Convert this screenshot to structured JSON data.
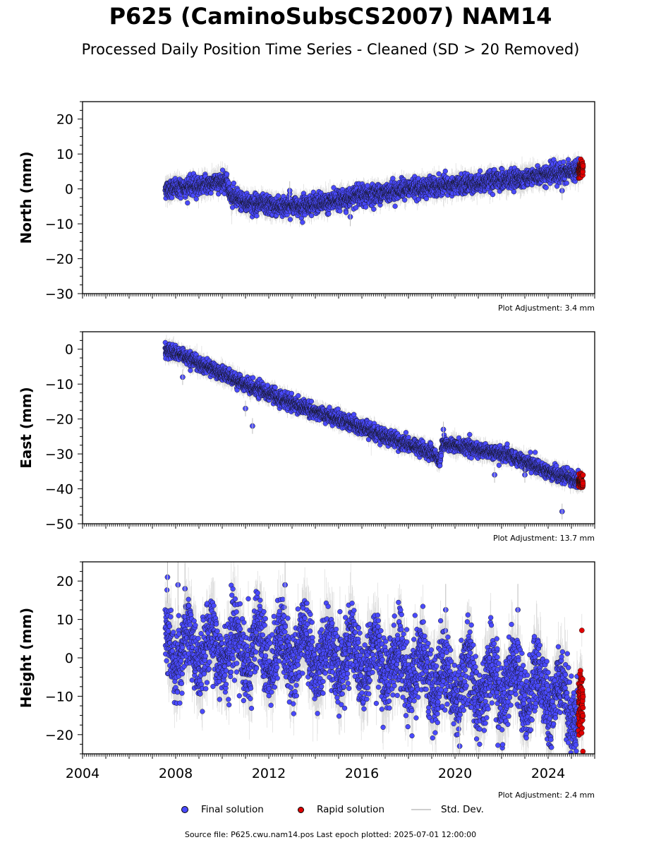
{
  "header": {
    "title": "P625 (CaminoSubsCS2007) NAM14",
    "subtitle": "Processed Daily Position Time Series - Cleaned (SD > 20 Removed)"
  },
  "footer": {
    "source": "Source file: P625.cwu.nam14.pos  Last epoch plotted: 2025-07-01 12:00:00"
  },
  "legend": {
    "final": "Final solution",
    "rapid": "Rapid solution",
    "std": "Std. Dev."
  },
  "colors": {
    "final": "#4a4aff",
    "rapid": "#e00000",
    "std": "#bdbdbd"
  },
  "chart_data": [
    {
      "type": "scatter",
      "ylabel": "North (mm)",
      "xlim": [
        2004,
        2026
      ],
      "ylim": [
        -30,
        25
      ],
      "yticks": [
        20,
        10,
        0,
        -10,
        -20,
        -30
      ],
      "adjustment": "Plot Adjustment: 3.4 mm",
      "start": 2007.55,
      "rapid_start": 2025.3,
      "end": 2025.5,
      "noise": 1.3,
      "sd": 1.8,
      "trend": [
        [
          2007.55,
          0
        ],
        [
          2008.5,
          0.5
        ],
        [
          2009.5,
          1.5
        ],
        [
          2010.2,
          2.5
        ],
        [
          2010.35,
          -2
        ],
        [
          2011.0,
          -4
        ],
        [
          2012.5,
          -5
        ],
        [
          2014.0,
          -4.5
        ],
        [
          2016.0,
          -2
        ],
        [
          2018.0,
          0
        ],
        [
          2020.0,
          1
        ],
        [
          2022.0,
          2.5
        ],
        [
          2024.0,
          4
        ],
        [
          2025.5,
          5.5
        ]
      ],
      "outliers": [
        [
          2012.9,
          -0.5
        ],
        [
          2015.5,
          -8
        ],
        [
          2024.6,
          -0.5
        ]
      ]
    },
    {
      "type": "scatter",
      "ylabel": "East (mm)",
      "xlim": [
        2004,
        2026
      ],
      "ylim": [
        -50,
        5
      ],
      "yticks": [
        0,
        -10,
        -20,
        -30,
        -40,
        -50
      ],
      "adjustment": "Plot Adjustment: 13.7 mm",
      "start": 2007.55,
      "rapid_start": 2025.3,
      "end": 2025.5,
      "noise": 1.0,
      "sd": 1.5,
      "trend": [
        [
          2007.55,
          0
        ],
        [
          2009.0,
          -4
        ],
        [
          2011.0,
          -10
        ],
        [
          2013.0,
          -15.5
        ],
        [
          2015.0,
          -20
        ],
        [
          2017.0,
          -25
        ],
        [
          2019.0,
          -29.5
        ],
        [
          2019.35,
          -32
        ],
        [
          2019.45,
          -27
        ],
        [
          2020.0,
          -27.5
        ],
        [
          2022.0,
          -30
        ],
        [
          2023.0,
          -32
        ],
        [
          2024.0,
          -35
        ],
        [
          2025.5,
          -38
        ]
      ],
      "outliers": [
        [
          2011.0,
          -17
        ],
        [
          2011.3,
          -22
        ],
        [
          2019.5,
          -23
        ],
        [
          2021.7,
          -36
        ],
        [
          2023.0,
          -36
        ],
        [
          2024.6,
          -46.5
        ],
        [
          2008.3,
          -8
        ]
      ]
    },
    {
      "type": "scatter",
      "ylabel": "Height (mm)",
      "xlim": [
        2004,
        2026
      ],
      "ylim": [
        -25,
        25
      ],
      "yticks": [
        20,
        10,
        0,
        -10,
        -20
      ],
      "xticks": [
        2004,
        2008,
        2012,
        2016,
        2020,
        2024
      ],
      "adjustment": "Plot Adjustment: 2.4 mm",
      "start": 2007.55,
      "rapid_start": 2025.3,
      "end": 2025.5,
      "noise": 4.5,
      "sd": 4.5,
      "annual": 5,
      "trend": [
        [
          2007.55,
          2
        ],
        [
          2012.0,
          2
        ],
        [
          2014.0,
          1
        ],
        [
          2016.0,
          0
        ],
        [
          2018.0,
          -3
        ],
        [
          2020.0,
          -6
        ],
        [
          2022.0,
          -7
        ],
        [
          2024.0,
          -8
        ],
        [
          2025.5,
          -15
        ]
      ],
      "outliers": [
        [
          2007.65,
          21
        ],
        [
          2008.1,
          19
        ],
        [
          2008.4,
          18
        ],
        [
          2012.7,
          19
        ],
        [
          2019.6,
          12.5
        ],
        [
          2020.2,
          -23
        ],
        [
          2022.7,
          12.5
        ]
      ]
    }
  ]
}
